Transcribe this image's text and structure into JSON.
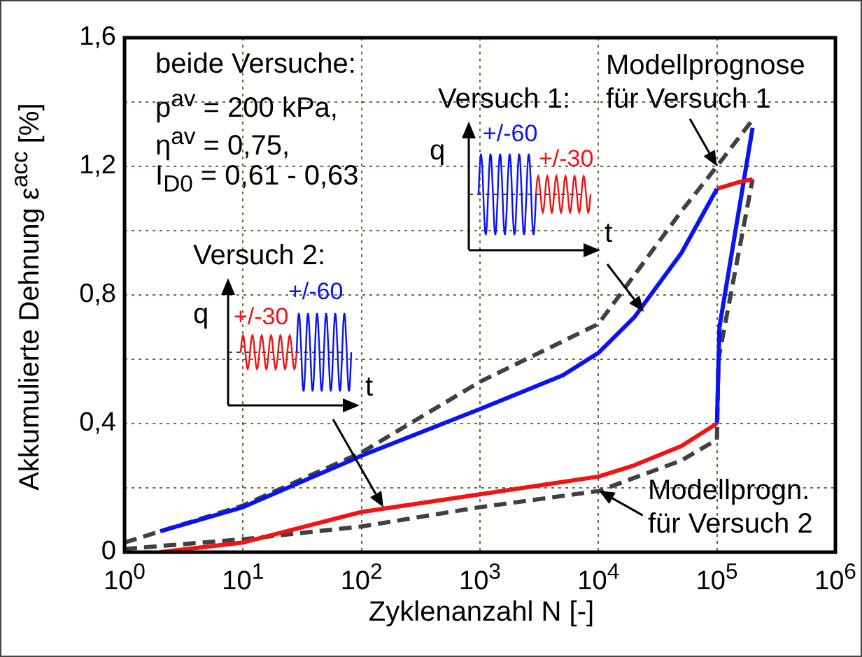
{
  "chart_data": {
    "type": "line",
    "xlabel": "Zyklenanzahl N [-]",
    "ylabel": "Akkumulierte Dehnung ε$^{acc}$ [%]",
    "log": "x",
    "grid": true,
    "legend": false,
    "marker": "none",
    "xlim": [
      1,
      1000000
    ],
    "xticks": [
      {
        "value": 1,
        "label": "10$^{0}$"
      },
      {
        "value": 10,
        "label": "10$^{1}$"
      },
      {
        "value": 100,
        "label": "10$^{2}$"
      },
      {
        "value": 1000,
        "label": "10$^{3}$"
      },
      {
        "value": 10000,
        "label": "10$^{4}$"
      },
      {
        "value": 100000,
        "label": "10$^{5}$"
      },
      {
        "value": 1000000,
        "label": "10$^{6}$"
      }
    ],
    "ylim": [
      0,
      1.6
    ],
    "yticks": [
      0,
      {
        "value": 0.2,
        "label": null
      },
      {
        "value": 0.4,
        "label": "0,4"
      },
      {
        "value": 0.6,
        "label": null
      },
      {
        "value": 0.8,
        "label": "0,8"
      },
      {
        "value": 1.0,
        "label": null
      },
      {
        "value": 1.2,
        "label": "1,2"
      },
      {
        "value": 1.4,
        "label": null
      },
      {
        "value": 1.6,
        "label": "1,6"
      }
    ],
    "series": [
      {
        "color": "#0a14f0",
        "line_style": "solid",
        "x": [
          2,
          10,
          100,
          1000,
          5000,
          10000,
          20000,
          50000,
          100000
        ],
        "values": [
          0.065,
          0.14,
          0.3,
          0.445,
          0.55,
          0.62,
          0.73,
          0.93,
          1.13
        ]
      },
      {
        "color": "#f01414",
        "line_style": "solid",
        "x": [
          100000,
          150000,
          200000
        ],
        "values": [
          1.13,
          1.15,
          1.16
        ]
      },
      {
        "color": "#f01414",
        "line_style": "solid",
        "x": [
          2,
          10,
          100,
          1000,
          10000,
          20000,
          50000,
          100000
        ],
        "values": [
          0,
          0.03,
          0.125,
          0.18,
          0.235,
          0.27,
          0.33,
          0.4
        ]
      },
      {
        "color": "#0a14f0",
        "line_style": "solid",
        "x": [
          100000,
          105000,
          200000
        ],
        "values": [
          0.4,
          0.7,
          1.32
        ]
      },
      {
        "color": "#404040",
        "line_style": "dashed",
        "x": [
          1,
          10,
          100,
          1000,
          10000,
          50000,
          100000,
          200000
        ],
        "values": [
          0.03,
          0.145,
          0.31,
          0.53,
          0.71,
          1.06,
          1.2,
          1.345
        ]
      },
      {
        "color": "#404040",
        "line_style": "dashed",
        "x": [
          1,
          10,
          100,
          1000,
          10000,
          50000,
          100000,
          103000,
          200000
        ],
        "values": [
          0.01,
          0.04,
          0.08,
          0.14,
          0.19,
          0.285,
          0.35,
          0.6,
          1.16
        ]
      }
    ],
    "annotations": [
      "beide Versuche:",
      "p$^{av}$ = 200 kPa,",
      "η$^{av}$ = 0,75,",
      "I$_{D0}$ = 0,61 - 0,63",
      "Versuch 1:",
      "q",
      "+/-60",
      "+/-30",
      "t",
      "Versuch 2:",
      "q",
      "+/-30",
      "+/-60",
      "t",
      {
        "text": "Modellprognose für Versuch 1",
        "x": 100000,
        "y": 1.2
      },
      {
        "text": "Modellprogn. für Versuch 2",
        "x": 10000,
        "y": 0.19
      }
    ]
  }
}
